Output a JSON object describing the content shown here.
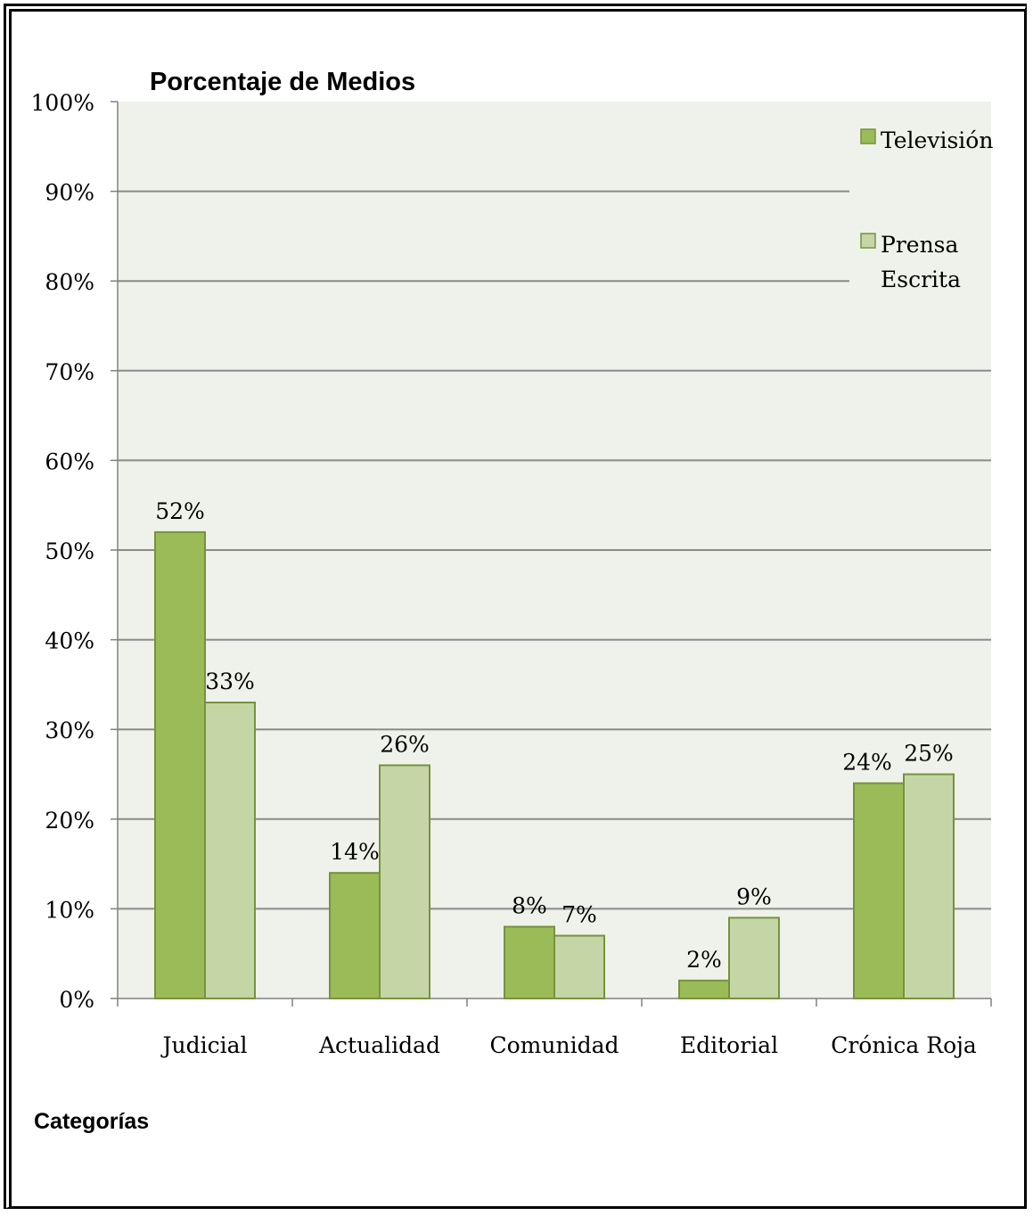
{
  "chart_data": {
    "type": "bar",
    "title": "Porcentaje de Medios",
    "xlabel": "Categorías",
    "ylabel": "",
    "categories": [
      "Judicial",
      "Actualidad",
      "Comunidad",
      "Editorial",
      "Crónica Roja"
    ],
    "series": [
      {
        "name": "Televisión",
        "values": [
          52,
          14,
          8,
          2,
          24
        ],
        "color": "#9bbb59"
      },
      {
        "name": "Prensa Escrita",
        "values": [
          33,
          26,
          7,
          9,
          25
        ],
        "color": "#c4d6a6"
      }
    ],
    "data_labels": [
      [
        "52%",
        "14%",
        "8%",
        "2%",
        "24%"
      ],
      [
        "33%",
        "26%",
        "7%",
        "9%",
        "25%"
      ]
    ],
    "ylim": [
      0,
      100
    ],
    "yticks": [
      "0%",
      "10%",
      "20%",
      "30%",
      "40%",
      "50%",
      "60%",
      "70%",
      "80%",
      "90%",
      "100%"
    ],
    "grid": true,
    "legend_position": "top-right",
    "legend_lines": [
      [
        "Televisión"
      ],
      [
        "Prensa",
        "Escrita"
      ]
    ],
    "colors": {
      "plot_background": "#eff2ea",
      "gridline": "#8a8a8a",
      "bar_border": "#76923c"
    }
  }
}
